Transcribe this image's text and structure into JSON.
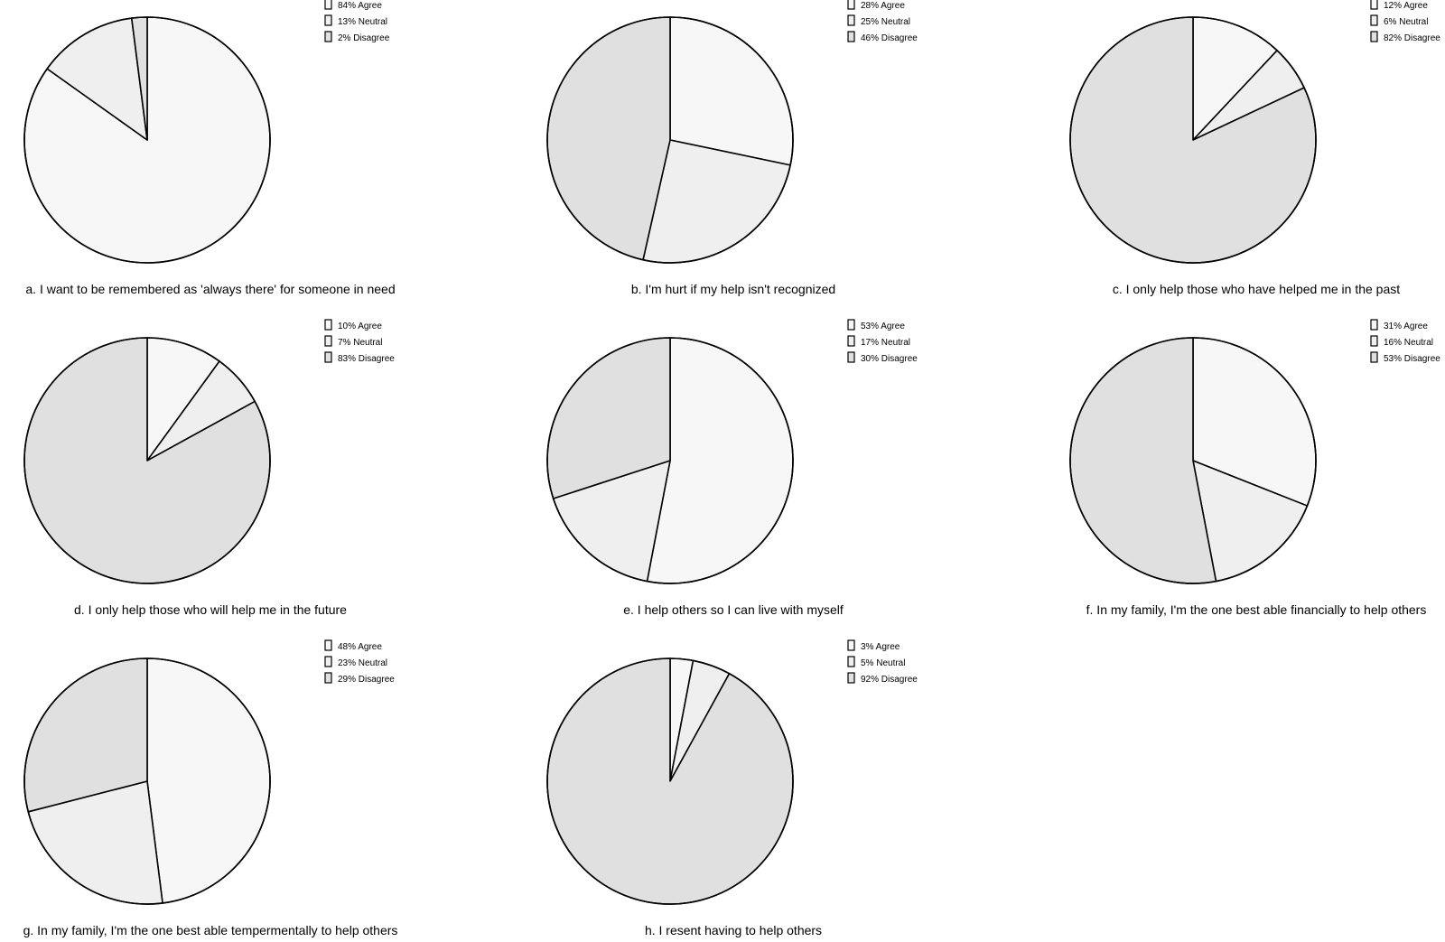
{
  "colors": {
    "agree": "#f7f7f7",
    "neutral": "#efefef",
    "disagree": "#e0e0e0",
    "stroke": "#000000"
  },
  "chart_data": [
    {
      "type": "pie",
      "title": "a. I want to be remembered as 'always there' for someone in need",
      "categories": [
        "Agree",
        "Neutral",
        "Disagree"
      ],
      "values": [
        84,
        13,
        2
      ],
      "legend": [
        "84% Agree",
        "13% Neutral",
        "2% Disagree"
      ],
      "legend_position": "top-right"
    },
    {
      "type": "pie",
      "title": "b. I'm hurt if my help isn't recognized",
      "categories": [
        "Agree",
        "Neutral",
        "Disagree"
      ],
      "values": [
        28,
        25,
        46
      ],
      "legend": [
        "28% Agree",
        "25% Neutral",
        "46% Disagree"
      ],
      "legend_position": "top-right"
    },
    {
      "type": "pie",
      "title": "c. I only help those who have helped me in the past",
      "categories": [
        "Agree",
        "Neutral",
        "Disagree"
      ],
      "values": [
        12,
        6,
        82
      ],
      "legend": [
        "12% Agree",
        "6% Neutral",
        "82% Disagree"
      ],
      "legend_position": "top-right"
    },
    {
      "type": "pie",
      "title": "d. I only help those who will help me in the future",
      "categories": [
        "Agree",
        "Neutral",
        "Disagree"
      ],
      "values": [
        10,
        7,
        83
      ],
      "legend": [
        "10% Agree",
        "7% Neutral",
        "83% Disagree"
      ],
      "legend_position": "top-right"
    },
    {
      "type": "pie",
      "title": "e. I help others so I can live with myself",
      "categories": [
        "Agree",
        "Neutral",
        "Disagree"
      ],
      "values": [
        53,
        17,
        30
      ],
      "legend": [
        "53% Agree",
        "17% Neutral",
        "30% Disagree"
      ],
      "legend_position": "top-right"
    },
    {
      "type": "pie",
      "title": "f. In my family, I'm the one best able financially to help others",
      "categories": [
        "Agree",
        "Neutral",
        "Disagree"
      ],
      "values": [
        31,
        16,
        53
      ],
      "legend": [
        "31% Agree",
        "16% Neutral",
        "53% Disagree"
      ],
      "legend_position": "top-right"
    },
    {
      "type": "pie",
      "title": "g. In my family, I'm the one best able tempermentally to help others",
      "categories": [
        "Agree",
        "Neutral",
        "Disagree"
      ],
      "values": [
        48,
        23,
        29
      ],
      "legend": [
        "48% Agree",
        "23% Neutral",
        "29% Disagree"
      ],
      "legend_position": "top-right"
    },
    {
      "type": "pie",
      "title": "h. I resent having to help others",
      "categories": [
        "Agree",
        "Neutral",
        "Disagree"
      ],
      "values": [
        3,
        5,
        92
      ],
      "legend": [
        "3% Agree",
        "5% Neutral",
        "92% Disagree"
      ],
      "legend_position": "top-right"
    }
  ]
}
